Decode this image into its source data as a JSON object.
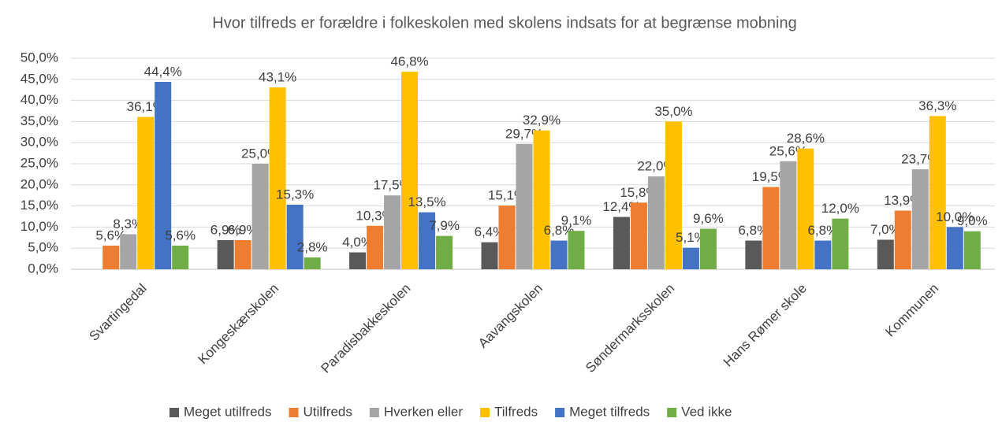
{
  "chart_data": {
    "type": "bar",
    "title": "Hvor tilfreds er forældre i folkeskolen med skolens indsats for at begrænse mobning",
    "categories": [
      "Svartingedal",
      "Kongeskærskolen",
      "Paradisbakkeskolen",
      "Aavangskolen",
      "Søndermarksskolen",
      "Hans Rømer skole",
      "Kommunen"
    ],
    "series": [
      {
        "name": "Meget utilfreds",
        "color": "#595959",
        "values": [
          null,
          6.9,
          4.0,
          6.4,
          12.4,
          6.8,
          7.0
        ],
        "value_labels": [
          null,
          "6,9%",
          "4,0%",
          "6,4%",
          "12,4%",
          "6,8%",
          "7,0%"
        ]
      },
      {
        "name": "Utilfreds",
        "color": "#ed7d31",
        "values": [
          5.6,
          6.9,
          10.3,
          15.1,
          15.8,
          19.5,
          13.9
        ],
        "value_labels": [
          "5,6%",
          "6,9%",
          "10,3%",
          "15,1%",
          "15,8%",
          "19,5%",
          "13,9%"
        ]
      },
      {
        "name": "Hverken eller",
        "color": "#a5a5a5",
        "values": [
          8.3,
          25.0,
          17.5,
          29.7,
          22.0,
          25.6,
          23.7
        ],
        "value_labels": [
          "8,3%",
          "25,0%",
          "17,5%",
          "29,7%",
          "22,0%",
          "25,6%",
          "23,7%"
        ]
      },
      {
        "name": "Tilfreds",
        "color": "#ffc000",
        "values": [
          36.1,
          43.1,
          46.8,
          32.9,
          35.0,
          28.6,
          36.3
        ],
        "value_labels": [
          "36,1%",
          "43,1%",
          "46,8%",
          "32,9%",
          "35,0%",
          "28,6%",
          "36,3%"
        ]
      },
      {
        "name": "Meget tilfreds",
        "color": "#4472c4",
        "values": [
          44.4,
          15.3,
          13.5,
          6.8,
          5.1,
          6.8,
          10.0
        ],
        "value_labels": [
          "44,4%",
          "15,3%",
          "13,5%",
          "6,8%",
          "5,1%",
          "6,8%",
          "10,0%"
        ]
      },
      {
        "name": "Ved ikke",
        "color": "#70ad47",
        "values": [
          5.6,
          2.8,
          7.9,
          9.1,
          9.6,
          12.0,
          9.0
        ],
        "value_labels": [
          "5,6%",
          "2,8%",
          "7,9%",
          "9,1%",
          "9,6%",
          "12,0%",
          "9,0%"
        ]
      }
    ],
    "ylim": [
      0,
      50
    ],
    "yticks": [
      {
        "value": 0,
        "label": "0,0%"
      },
      {
        "value": 5,
        "label": "5,0%"
      },
      {
        "value": 10,
        "label": "10,0%"
      },
      {
        "value": 15,
        "label": "15,0%"
      },
      {
        "value": 20,
        "label": "20,0%"
      },
      {
        "value": 25,
        "label": "25,0%"
      },
      {
        "value": 30,
        "label": "30,0%"
      },
      {
        "value": 35,
        "label": "35,0%"
      },
      {
        "value": 40,
        "label": "40,0%"
      },
      {
        "value": 45,
        "label": "45,0%"
      },
      {
        "value": 50,
        "label": "50,0%"
      }
    ],
    "grid": true,
    "legend": "bottom"
  }
}
